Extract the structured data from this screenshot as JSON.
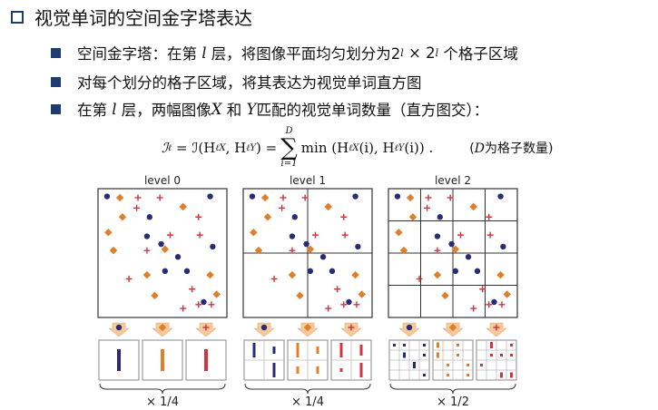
{
  "title": "视觉单词的空间金字塔表达",
  "bullets": {
    "b1_pre": "空间金字塔：在第",
    "b1_var": "l",
    "b1_mid": "层，将图像平面均匀划分为2",
    "b1_times": "× 2",
    "b1_post": "个格子区域",
    "b2": "对每个划分的格子区域，将其表达为视觉单词直方图",
    "b3_pre": "在第",
    "b3_var": "l",
    "b3_mid": "层，两幅图像",
    "b3_x": "X",
    "b3_and": "和",
    "b3_y": "Y",
    "b3_post": "匹配的视觉单词数量（直方图交）："
  },
  "formula": {
    "lhs": "ℐ",
    "eq1": "= ℐ(H",
    "args1": ", H",
    "eq2": ") =",
    "sum_top": "D",
    "sum_bottom": "i=1",
    "body": "min (H",
    "body2": "(i), H",
    "body3": "(i)) .",
    "note_d": "D",
    "note": "为格子数量)",
    "note_open": "("
  },
  "pyramid": {
    "levels": [
      {
        "label": "level 0",
        "weight": "× 1/4"
      },
      {
        "label": "level 1",
        "weight": "× 1/4"
      },
      {
        "label": "level 2",
        "weight": "× 1/2"
      }
    ],
    "colors": {
      "circle": "#2a2a7a",
      "diamond": "#e07f28",
      "plus": "#d1343f",
      "arrow": "#f6c99a",
      "border": "#333333"
    },
    "icons": [
      "circle-feature-icon",
      "diamond-feature-icon",
      "plus-feature-icon"
    ]
  }
}
